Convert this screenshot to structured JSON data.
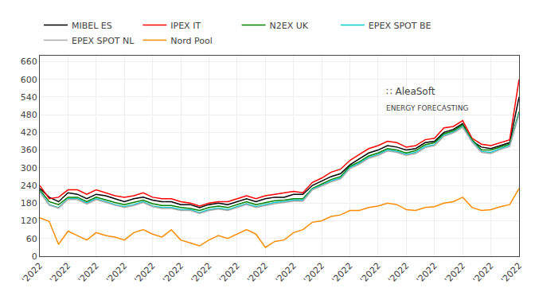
{
  "chart_data": {
    "type": "line",
    "categories": [
      "'2022",
      null,
      null,
      "'2022",
      null,
      null,
      "'2022",
      null,
      null,
      "'2022",
      null,
      null,
      "'2022",
      null,
      null,
      "'2022",
      null,
      null,
      "'2022",
      null,
      null,
      "'2022",
      null,
      null,
      "'2022",
      null,
      null,
      "'2022",
      null,
      null,
      "'2022",
      null,
      null,
      "'2022",
      null,
      null,
      "'2022",
      null,
      null,
      "'2022",
      null,
      null,
      "'2022",
      null,
      null,
      "'2022",
      null,
      null,
      "'2022",
      null,
      null,
      "'2022"
    ],
    "series": [
      {
        "name": "MIBEL ES",
        "color": "#000000",
        "values": [
          230,
          200,
          185,
          215,
          210,
          195,
          210,
          205,
          195,
          185,
          195,
          200,
          190,
          185,
          185,
          175,
          175,
          165,
          175,
          180,
          175,
          185,
          195,
          185,
          195,
          200,
          200,
          210,
          210,
          240,
          255,
          270,
          280,
          310,
          330,
          350,
          360,
          375,
          370,
          360,
          365,
          385,
          390,
          420,
          430,
          450,
          390,
          370,
          365,
          375,
          385,
          540
        ]
      },
      {
        "name": "IPEX IT",
        "color": "#ff0000",
        "values": [
          240,
          195,
          200,
          225,
          225,
          210,
          225,
          215,
          205,
          200,
          205,
          215,
          200,
          195,
          195,
          185,
          180,
          170,
          180,
          185,
          185,
          195,
          205,
          195,
          205,
          210,
          215,
          220,
          215,
          250,
          265,
          285,
          295,
          325,
          345,
          365,
          375,
          390,
          385,
          370,
          375,
          395,
          400,
          435,
          440,
          460,
          400,
          380,
          375,
          385,
          395,
          600
        ]
      },
      {
        "name": "N2EX UK",
        "color": "#008000",
        "values": [
          225,
          185,
          175,
          200,
          200,
          185,
          200,
          190,
          182,
          175,
          182,
          190,
          178,
          172,
          172,
          165,
          162,
          155,
          165,
          170,
          165,
          175,
          185,
          175,
          182,
          188,
          190,
          195,
          195,
          230,
          245,
          260,
          270,
          305,
          320,
          340,
          350,
          365,
          360,
          350,
          358,
          378,
          385,
          415,
          425,
          445,
          395,
          360,
          360,
          370,
          380,
          490
        ]
      },
      {
        "name": "EPEX SPOT BE",
        "color": "#00cccc",
        "values": [
          220,
          175,
          165,
          195,
          195,
          180,
          195,
          185,
          175,
          168,
          175,
          185,
          170,
          165,
          165,
          158,
          158,
          148,
          158,
          163,
          158,
          168,
          178,
          168,
          175,
          182,
          185,
          190,
          190,
          228,
          240,
          255,
          265,
          300,
          315,
          335,
          345,
          360,
          355,
          345,
          352,
          372,
          378,
          410,
          420,
          440,
          390,
          355,
          352,
          365,
          375,
          485
        ]
      },
      {
        "name": "EPEX SPOT NL",
        "color": "#aaaaaa",
        "values": [
          218,
          173,
          163,
          193,
          192,
          177,
          192,
          182,
          173,
          165,
          172,
          182,
          168,
          162,
          162,
          155,
          155,
          145,
          155,
          160,
          155,
          165,
          175,
          165,
          172,
          178,
          182,
          187,
          187,
          225,
          238,
          252,
          262,
          297,
          312,
          332,
          342,
          357,
          352,
          342,
          348,
          368,
          375,
          407,
          418,
          437,
          387,
          352,
          348,
          362,
          372,
          482
        ]
      },
      {
        "name": "Nord Pool",
        "color": "#ff8c00",
        "values": [
          130,
          118,
          40,
          85,
          70,
          55,
          80,
          70,
          65,
          55,
          80,
          90,
          75,
          65,
          90,
          55,
          45,
          35,
          55,
          70,
          60,
          75,
          90,
          75,
          30,
          50,
          55,
          80,
          90,
          115,
          120,
          135,
          140,
          155,
          155,
          165,
          170,
          180,
          175,
          158,
          155,
          165,
          168,
          180,
          185,
          200,
          165,
          155,
          158,
          168,
          175,
          230
        ]
      }
    ],
    "ylim": [
      0,
      680
    ],
    "yticks": [
      0,
      60,
      120,
      180,
      240,
      300,
      360,
      420,
      480,
      540,
      600,
      660
    ],
    "grid": true,
    "legend": "top",
    "annotations": [
      "∷ AleaSoft",
      "ENERGY FORECASTING"
    ]
  }
}
